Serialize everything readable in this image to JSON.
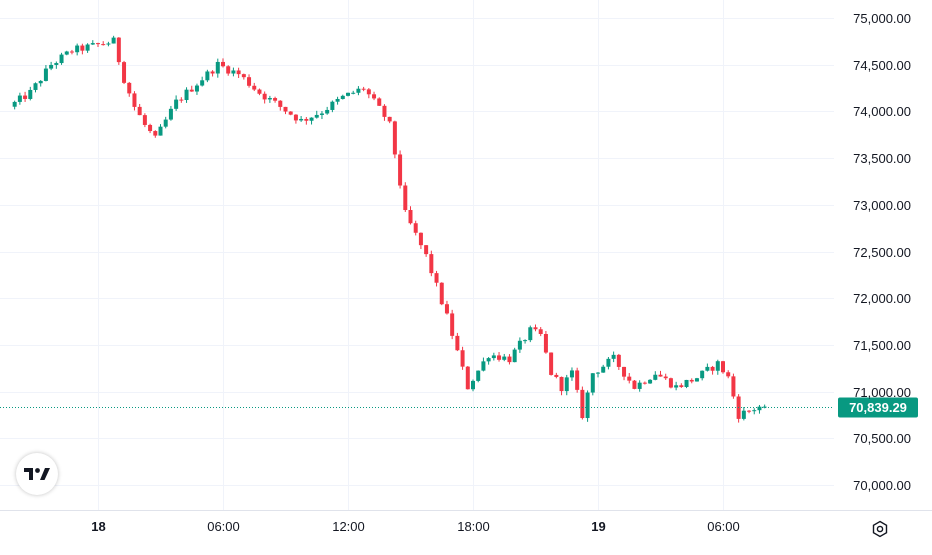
{
  "chart_data": {
    "type": "candlestick",
    "colors": {
      "up": "#089981",
      "down": "#f23645",
      "grid": "#f0f3fa",
      "last_price": "#089981"
    },
    "y_axis": {
      "ticks": [
        "75,000.00",
        "74,500.00",
        "74,000.00",
        "73,500.00",
        "73,000.00",
        "72,500.00",
        "72,000.00",
        "71,500.00",
        "71,000.00",
        "70,500.00",
        "70,000.00"
      ],
      "tick_values": [
        75000,
        74500,
        74000,
        73500,
        73000,
        72500,
        72000,
        71500,
        71000,
        70500,
        70000
      ],
      "range": [
        69750,
        75150
      ]
    },
    "x_axis": {
      "labels": [
        {
          "text": "18",
          "bold": true,
          "time": "day 18 00:00"
        },
        {
          "text": "06:00",
          "bold": false,
          "time": "day 18 06:00"
        },
        {
          "text": "12:00",
          "bold": false,
          "time": "day 18 12:00"
        },
        {
          "text": "18:00",
          "bold": false,
          "time": "day 18 18:00"
        },
        {
          "text": "19",
          "bold": true,
          "time": "day 19 00:00"
        },
        {
          "text": "06:00",
          "bold": false,
          "time": "day 19 06:00"
        }
      ],
      "candle_interval": "15m"
    },
    "last_price": {
      "value": 70839.29,
      "label": "70,839.29"
    },
    "anchors": [
      [
        "day 17 20:00",
        74050
      ],
      [
        "day 17 21:00",
        74200
      ],
      [
        "day 17 22:00",
        74500
      ],
      [
        "day 17 23:00",
        74650
      ],
      [
        "day 18 00:00",
        74700
      ],
      [
        "day 18 01:00",
        74750
      ],
      [
        "day 18 01:30",
        74350
      ],
      [
        "day 18 02:00",
        74050
      ],
      [
        "day 18 02:30",
        73850
      ],
      [
        "day 18 03:00",
        73700
      ],
      [
        "day 18 03:30",
        73900
      ],
      [
        "day 18 04:00",
        74100
      ],
      [
        "day 18 05:00",
        74300
      ],
      [
        "day 18 06:00",
        74500
      ],
      [
        "day 18 07:00",
        74400
      ],
      [
        "day 18 08:00",
        74200
      ],
      [
        "day 18 09:00",
        74050
      ],
      [
        "day 18 10:00",
        73900
      ],
      [
        "day 18 11:00",
        74000
      ],
      [
        "day 18 12:00",
        74150
      ],
      [
        "day 18 13:00",
        74250
      ],
      [
        "day 18 14:00",
        73950
      ],
      [
        "day 18 14:15",
        73850
      ],
      [
        "day 18 14:30",
        73550
      ],
      [
        "day 18 15:00",
        72900
      ],
      [
        "day 18 16:00",
        72450
      ],
      [
        "day 18 17:00",
        71800
      ],
      [
        "day 18 18:00",
        71050
      ],
      [
        "day 18 19:00",
        71400
      ],
      [
        "day 18 20:00",
        71350
      ],
      [
        "day 18 21:00",
        71650
      ],
      [
        "day 18 21:30",
        71600
      ],
      [
        "day 18 22:00",
        71200
      ],
      [
        "day 18 22:30",
        71050
      ],
      [
        "day 18 23:00",
        71200
      ],
      [
        "day 18 23:30",
        70750
      ],
      [
        "day 19 00:00",
        71200
      ],
      [
        "day 19 01:00",
        71350
      ],
      [
        "day 19 02:00",
        71050
      ],
      [
        "day 19 03:00",
        71200
      ],
      [
        "day 19 04:00",
        71050
      ],
      [
        "day 19 05:00",
        71150
      ],
      [
        "day 19 06:00",
        71300
      ],
      [
        "day 19 06:30",
        71150
      ],
      [
        "day 19 07:00",
        70750
      ],
      [
        "day 19 08:00",
        70840
      ]
    ]
  },
  "footer": {
    "logo_text": "17"
  }
}
